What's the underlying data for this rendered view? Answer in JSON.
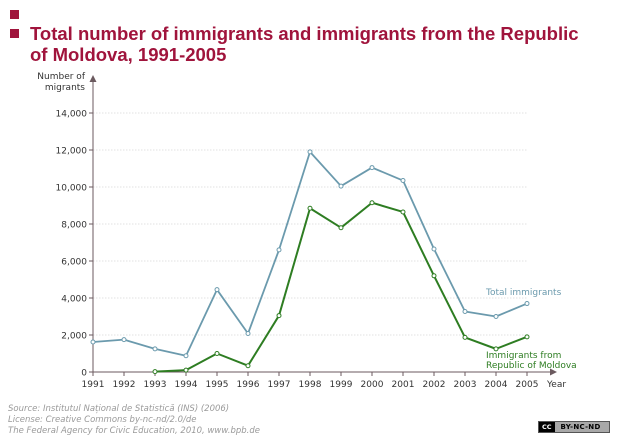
{
  "title": "Total number of immigrants and immigrants from the Republic of Moldova, 1991-2005",
  "source": {
    "line1": "Source: Institutul Național de Statistică (INS) (2006)",
    "line2": "License: Creative Commons by-nc-nd/2.0/de",
    "line3": "The Federal Agency for Civic Education, 2010, www.bpb.de"
  },
  "license_badge": {
    "cc": "CC",
    "text": "BY-NC-ND"
  },
  "colors": {
    "title": "#a0143c",
    "total": "#6b9aad",
    "moldova": "#2e7d22",
    "axis": "#6b5a5f"
  },
  "chart_data": {
    "type": "line",
    "ylabel": [
      "Number of",
      "migrants"
    ],
    "xlabel": "Year",
    "ylim": [
      0,
      14000
    ],
    "yticks": [
      0,
      2000,
      4000,
      6000,
      8000,
      10000,
      12000,
      14000
    ],
    "ytick_labels": [
      "0",
      "2,000",
      "4,000",
      "6,000",
      "8,000",
      "10,000",
      "12,000",
      "14,000"
    ],
    "grid": true,
    "categories": [
      "1991",
      "1992",
      "1993",
      "1994",
      "1995",
      "1996",
      "1997",
      "1998",
      "1999",
      "2000",
      "2001",
      "2002",
      "2003",
      "2004",
      "2005"
    ],
    "series": [
      {
        "key": "total",
        "name": "Total immigrants",
        "values": [
          1620,
          1750,
          1250,
          880,
          4450,
          2080,
          6600,
          11900,
          10050,
          11050,
          10350,
          6650,
          3270,
          3000,
          3700
        ]
      },
      {
        "key": "moldova",
        "name": [
          "Immigrants from",
          "Republic of Moldova"
        ],
        "values": [
          null,
          null,
          20,
          100,
          1000,
          340,
          3050,
          8850,
          7800,
          9150,
          8650,
          5200,
          1870,
          1250,
          1900
        ]
      }
    ]
  }
}
